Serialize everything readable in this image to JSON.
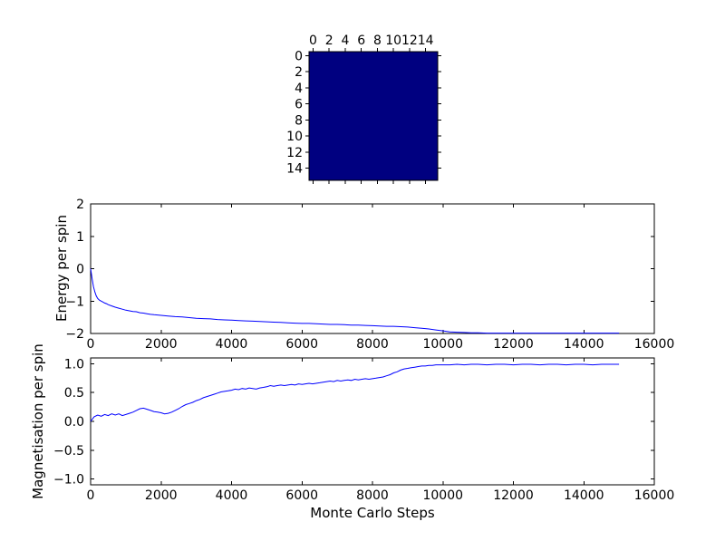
{
  "figure": {
    "background": "#ffffff",
    "line_color": "#0000ff",
    "heatmap_color": "#000080"
  },
  "chart_data": [
    {
      "type": "heatmap",
      "title": "",
      "description": "16x16 spin lattice, uniform single color (all spins aligned)",
      "rows": 16,
      "cols": 16,
      "uniform_value": 1,
      "color": "#000080",
      "xticks": [
        0,
        2,
        4,
        6,
        8,
        10,
        12,
        14
      ],
      "xtick_labels": [
        "0",
        "2",
        "4",
        "6",
        "8",
        "10",
        "12",
        "14"
      ],
      "yticks": [
        0,
        2,
        4,
        6,
        8,
        10,
        12,
        14
      ],
      "ytick_labels": [
        "0",
        "2",
        "4",
        "6",
        "8",
        "10",
        "12",
        "14"
      ],
      "legend": "none",
      "grid": false
    },
    {
      "type": "line",
      "title": "",
      "ylabel": "Energy per spin",
      "xlabel": "",
      "xlim": [
        0,
        16000
      ],
      "ylim": [
        -2,
        2
      ],
      "xticks": [
        0,
        2000,
        4000,
        6000,
        8000,
        10000,
        12000,
        14000,
        16000
      ],
      "xtick_labels": [
        "0",
        "2000",
        "4000",
        "6000",
        "8000",
        "10000",
        "12000",
        "14000",
        "16000"
      ],
      "yticks": [
        2,
        1,
        0,
        -1,
        -2
      ],
      "ytick_labels": [
        "2",
        "1",
        "0",
        "−1",
        "−2"
      ],
      "grid": false,
      "legend": "none",
      "series": [
        {
          "name": "energy",
          "color": "#0000ff",
          "points": [
            [
              0,
              0
            ],
            [
              40,
              -0.3
            ],
            [
              80,
              -0.55
            ],
            [
              120,
              -0.72
            ],
            [
              160,
              -0.84
            ],
            [
              200,
              -0.92
            ],
            [
              250,
              -0.97
            ],
            [
              300,
              -1.0
            ],
            [
              350,
              -1.03
            ],
            [
              400,
              -1.06
            ],
            [
              450,
              -1.08
            ],
            [
              500,
              -1.11
            ],
            [
              600,
              -1.15
            ],
            [
              700,
              -1.19
            ],
            [
              800,
              -1.22
            ],
            [
              900,
              -1.25
            ],
            [
              1000,
              -1.28
            ],
            [
              1100,
              -1.3
            ],
            [
              1200,
              -1.32
            ],
            [
              1300,
              -1.33
            ],
            [
              1400,
              -1.36
            ],
            [
              1500,
              -1.37
            ],
            [
              1600,
              -1.39
            ],
            [
              1700,
              -1.41
            ],
            [
              1800,
              -1.42
            ],
            [
              1900,
              -1.43
            ],
            [
              2000,
              -1.44
            ],
            [
              2200,
              -1.46
            ],
            [
              2400,
              -1.48
            ],
            [
              2600,
              -1.49
            ],
            [
              2800,
              -1.51
            ],
            [
              3000,
              -1.53
            ],
            [
              3200,
              -1.54
            ],
            [
              3400,
              -1.55
            ],
            [
              3600,
              -1.57
            ],
            [
              3800,
              -1.58
            ],
            [
              4000,
              -1.59
            ],
            [
              4200,
              -1.6
            ],
            [
              4400,
              -1.61
            ],
            [
              4600,
              -1.62
            ],
            [
              4800,
              -1.63
            ],
            [
              5000,
              -1.64
            ],
            [
              5200,
              -1.65
            ],
            [
              5400,
              -1.66
            ],
            [
              5600,
              -1.67
            ],
            [
              5800,
              -1.68
            ],
            [
              6000,
              -1.69
            ],
            [
              6200,
              -1.69
            ],
            [
              6400,
              -1.7
            ],
            [
              6600,
              -1.71
            ],
            [
              6800,
              -1.72
            ],
            [
              7000,
              -1.72
            ],
            [
              7200,
              -1.73
            ],
            [
              7400,
              -1.74
            ],
            [
              7600,
              -1.74
            ],
            [
              7800,
              -1.75
            ],
            [
              8000,
              -1.76
            ],
            [
              8200,
              -1.77
            ],
            [
              8400,
              -1.78
            ],
            [
              8600,
              -1.78
            ],
            [
              8800,
              -1.79
            ],
            [
              9000,
              -1.8
            ],
            [
              9200,
              -1.82
            ],
            [
              9400,
              -1.84
            ],
            [
              9600,
              -1.86
            ],
            [
              9800,
              -1.89
            ],
            [
              10000,
              -1.92
            ],
            [
              10200,
              -1.95
            ],
            [
              10400,
              -1.96
            ],
            [
              10600,
              -1.97
            ],
            [
              10800,
              -1.98
            ],
            [
              11000,
              -1.98
            ],
            [
              11250,
              -1.99
            ],
            [
              11500,
              -1.99
            ],
            [
              12000,
              -1.99
            ],
            [
              12500,
              -1.99
            ],
            [
              13000,
              -1.99
            ],
            [
              13500,
              -1.99
            ],
            [
              14000,
              -1.99
            ],
            [
              14500,
              -1.99
            ],
            [
              15000,
              -1.99
            ]
          ]
        }
      ]
    },
    {
      "type": "line",
      "title": "",
      "ylabel": "Magnetisation per spin",
      "xlabel": "Monte Carlo Steps",
      "xlim": [
        0,
        16000
      ],
      "ylim": [
        -1.1,
        1.1
      ],
      "xticks": [
        0,
        2000,
        4000,
        6000,
        8000,
        10000,
        12000,
        14000,
        16000
      ],
      "xtick_labels": [
        "0",
        "2000",
        "4000",
        "6000",
        "8000",
        "10000",
        "12000",
        "14000",
        "16000"
      ],
      "yticks": [
        1.0,
        0.5,
        0.0,
        -0.5,
        -1.0
      ],
      "ytick_labels": [
        "1.0",
        "0.5",
        "0.0",
        "−0.5",
        "−1.0"
      ],
      "grid": false,
      "legend": "none",
      "series": [
        {
          "name": "magnetisation",
          "color": "#0000ff",
          "points": [
            [
              0,
              0.0
            ],
            [
              100,
              0.08
            ],
            [
              200,
              0.11
            ],
            [
              300,
              0.09
            ],
            [
              400,
              0.12
            ],
            [
              500,
              0.1
            ],
            [
              600,
              0.13
            ],
            [
              700,
              0.11
            ],
            [
              800,
              0.13
            ],
            [
              900,
              0.1
            ],
            [
              1000,
              0.12
            ],
            [
              1100,
              0.14
            ],
            [
              1200,
              0.16
            ],
            [
              1300,
              0.19
            ],
            [
              1400,
              0.22
            ],
            [
              1500,
              0.23
            ],
            [
              1600,
              0.21
            ],
            [
              1700,
              0.19
            ],
            [
              1800,
              0.17
            ],
            [
              1900,
              0.16
            ],
            [
              2000,
              0.15
            ],
            [
              2100,
              0.13
            ],
            [
              2200,
              0.14
            ],
            [
              2300,
              0.16
            ],
            [
              2400,
              0.19
            ],
            [
              2500,
              0.22
            ],
            [
              2600,
              0.26
            ],
            [
              2700,
              0.29
            ],
            [
              2800,
              0.31
            ],
            [
              2900,
              0.33
            ],
            [
              3000,
              0.36
            ],
            [
              3100,
              0.38
            ],
            [
              3200,
              0.41
            ],
            [
              3300,
              0.43
            ],
            [
              3400,
              0.45
            ],
            [
              3500,
              0.47
            ],
            [
              3600,
              0.49
            ],
            [
              3700,
              0.51
            ],
            [
              3800,
              0.52
            ],
            [
              3900,
              0.53
            ],
            [
              4000,
              0.54
            ],
            [
              4100,
              0.56
            ],
            [
              4200,
              0.55
            ],
            [
              4300,
              0.57
            ],
            [
              4400,
              0.56
            ],
            [
              4500,
              0.58
            ],
            [
              4600,
              0.57
            ],
            [
              4700,
              0.56
            ],
            [
              4800,
              0.58
            ],
            [
              4900,
              0.59
            ],
            [
              5000,
              0.6
            ],
            [
              5100,
              0.62
            ],
            [
              5200,
              0.61
            ],
            [
              5300,
              0.62
            ],
            [
              5400,
              0.63
            ],
            [
              5500,
              0.62
            ],
            [
              5600,
              0.63
            ],
            [
              5700,
              0.64
            ],
            [
              5800,
              0.63
            ],
            [
              5900,
              0.65
            ],
            [
              6000,
              0.64
            ],
            [
              6100,
              0.65
            ],
            [
              6200,
              0.66
            ],
            [
              6300,
              0.65
            ],
            [
              6400,
              0.66
            ],
            [
              6500,
              0.67
            ],
            [
              6600,
              0.68
            ],
            [
              6700,
              0.69
            ],
            [
              6800,
              0.7
            ],
            [
              6900,
              0.69
            ],
            [
              7000,
              0.71
            ],
            [
              7100,
              0.7
            ],
            [
              7200,
              0.71
            ],
            [
              7300,
              0.72
            ],
            [
              7400,
              0.71
            ],
            [
              7500,
              0.73
            ],
            [
              7600,
              0.72
            ],
            [
              7700,
              0.73
            ],
            [
              7800,
              0.74
            ],
            [
              7900,
              0.73
            ],
            [
              8000,
              0.74
            ],
            [
              8100,
              0.75
            ],
            [
              8200,
              0.76
            ],
            [
              8300,
              0.77
            ],
            [
              8400,
              0.79
            ],
            [
              8500,
              0.81
            ],
            [
              8600,
              0.84
            ],
            [
              8700,
              0.86
            ],
            [
              8800,
              0.89
            ],
            [
              8900,
              0.91
            ],
            [
              9000,
              0.92
            ],
            [
              9100,
              0.93
            ],
            [
              9200,
              0.94
            ],
            [
              9300,
              0.95
            ],
            [
              9400,
              0.96
            ],
            [
              9500,
              0.96
            ],
            [
              9600,
              0.97
            ],
            [
              9700,
              0.97
            ],
            [
              9800,
              0.98
            ],
            [
              9900,
              0.98
            ],
            [
              10000,
              0.98
            ],
            [
              10200,
              0.98
            ],
            [
              10400,
              0.99
            ],
            [
              10600,
              0.98
            ],
            [
              10800,
              0.99
            ],
            [
              11000,
              0.99
            ],
            [
              11250,
              0.98
            ],
            [
              11500,
              0.99
            ],
            [
              11750,
              0.99
            ],
            [
              12000,
              0.98
            ],
            [
              12250,
              0.99
            ],
            [
              12500,
              0.99
            ],
            [
              12750,
              0.98
            ],
            [
              13000,
              0.99
            ],
            [
              13250,
              0.99
            ],
            [
              13500,
              0.98
            ],
            [
              13750,
              0.99
            ],
            [
              14000,
              0.99
            ],
            [
              14250,
              0.98
            ],
            [
              14500,
              0.99
            ],
            [
              14750,
              0.99
            ],
            [
              15000,
              0.99
            ]
          ]
        }
      ]
    }
  ]
}
